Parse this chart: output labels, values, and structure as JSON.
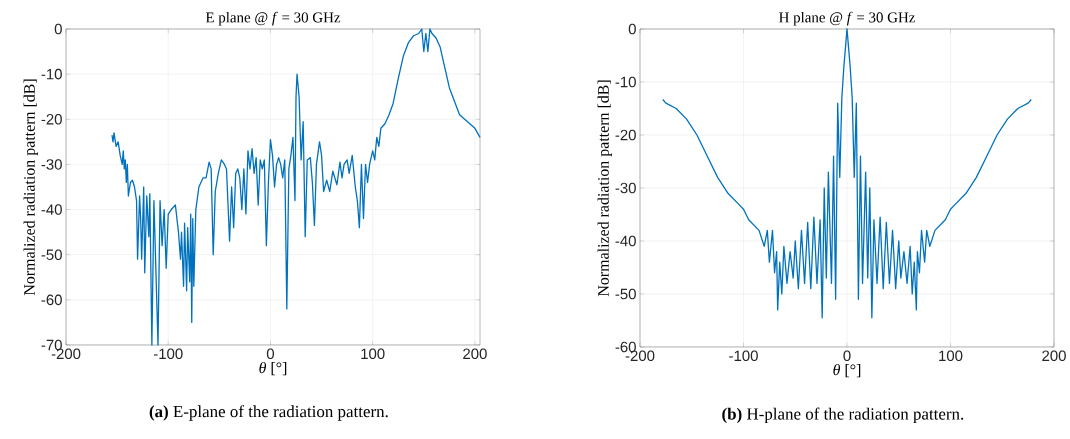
{
  "chart_data": [
    {
      "type": "line",
      "title": "E plane @ *f* = 30 GHz",
      "xlabel": "*θ* [°]",
      "ylabel": "Normalized radiation pattern [dB]",
      "annotations": [
        "**(a)** E-plane of the radiation pattern."
      ],
      "grid": true,
      "xlim": [
        -200,
        205
      ],
      "ylim": [
        -70,
        0
      ],
      "xticks": [
        -200,
        -100,
        0,
        100,
        200
      ],
      "yticks": [
        -70,
        -60,
        -50,
        -40,
        -30,
        -20,
        -10,
        0
      ],
      "series": [
        {
          "color": "#0072bd",
          "x": [
            -155,
            -154,
            -153,
            -151,
            -149,
            -147,
            -145,
            -144,
            -143,
            -142,
            -141,
            -140,
            -139,
            -137,
            -135,
            -133,
            -131,
            -130,
            -128,
            -127,
            -126,
            -124,
            -123,
            -121,
            -119,
            -118,
            -116,
            -114,
            -112,
            -110,
            -108,
            -106,
            -104,
            -102,
            -100,
            -97,
            -93,
            -90,
            -88,
            -87,
            -85,
            -84,
            -82,
            -81,
            -79,
            -78,
            -77,
            -76,
            -75,
            -73,
            -70,
            -66,
            -63,
            -60,
            -58,
            -56,
            -54,
            -51,
            -48,
            -45,
            -43,
            -40,
            -38,
            -36,
            -34,
            -32,
            -30,
            -28,
            -26,
            -24,
            -22,
            -20,
            -18,
            -16,
            -14,
            -12,
            -10,
            -8,
            -6,
            -4,
            -2,
            0,
            2,
            4,
            6,
            8,
            10,
            12,
            14,
            16,
            18,
            20,
            22,
            24,
            25,
            26,
            28,
            30,
            32,
            34,
            36,
            39,
            41,
            43,
            45,
            48,
            50,
            52,
            55,
            58,
            61,
            63,
            65,
            68,
            70,
            72,
            75,
            77,
            80,
            83,
            85,
            87,
            89,
            91,
            93,
            95,
            97,
            100,
            102,
            104,
            106,
            108,
            112,
            116,
            120,
            125,
            130,
            135,
            140,
            145,
            148,
            150,
            152,
            154,
            156,
            158,
            162,
            166,
            170,
            175,
            180,
            185,
            190,
            195,
            200,
            205
          ],
          "values": [
            -23.5,
            -25,
            -23,
            -26,
            -25,
            -28,
            -30,
            -27,
            -31,
            -29,
            -34,
            -30,
            -37,
            -34,
            -33.5,
            -35,
            -38,
            -51,
            -37,
            -42,
            -51,
            -35,
            -54,
            -37,
            -46,
            -36.5,
            -70,
            -38,
            -54,
            -70,
            -38,
            -48,
            -40,
            -53,
            -41,
            -40,
            -39,
            -45,
            -51,
            -45,
            -57,
            -43,
            -58,
            -44,
            -56,
            -41,
            -65,
            -42,
            -57,
            -40,
            -35,
            -33,
            -33,
            -29.5,
            -31,
            -50,
            -36,
            -32,
            -29,
            -30,
            -31,
            -47,
            -35,
            -44,
            -32,
            -31,
            -33,
            -40,
            -31,
            -41,
            -27,
            -31,
            -26.5,
            -32,
            -28.5,
            -39,
            -29,
            -31,
            -29,
            -48,
            -34,
            -24.5,
            -28,
            -35,
            -30,
            -28.5,
            -30,
            -33,
            -29,
            -62,
            -31,
            -28,
            -24,
            -38,
            -15,
            -10,
            -15,
            -29,
            -20.5,
            -46,
            -29,
            -28.5,
            -34,
            -43.5,
            -30,
            -25,
            -28,
            -36,
            -33.5,
            -36,
            -31.5,
            -33,
            -34.5,
            -29.5,
            -33,
            -30,
            -29,
            -32,
            -28,
            -35,
            -38,
            -44,
            -30,
            -42,
            -30,
            -34,
            -30,
            -27,
            -29,
            -24,
            -26,
            -22,
            -21,
            -19,
            -16.5,
            -11,
            -6,
            -3,
            -1.5,
            -1,
            0,
            -5,
            -1,
            -5,
            0,
            -1,
            -2,
            -4,
            -8,
            -13,
            -16,
            -19,
            -20,
            -21,
            -22,
            -24
          ]
        }
      ]
    },
    {
      "type": "line",
      "title": "H plane @ *f* = 30 GHz",
      "xlabel": "*θ* [°]",
      "ylabel": "Normalized radiation pattern [dB]",
      "annotations": [
        "**(b)** H-plane of the radiation pattern."
      ],
      "grid": true,
      "xlim": [
        -200,
        200
      ],
      "ylim": [
        -60,
        0
      ],
      "xticks": [
        -200,
        -100,
        0,
        100,
        200
      ],
      "yticks": [
        -60,
        -50,
        -40,
        -30,
        -20,
        -10,
        0
      ],
      "series": [
        {
          "color": "#0072bd",
          "x": [
            -178,
            -175,
            -165,
            -155,
            -145,
            -135,
            -125,
            -115,
            -105,
            -100,
            -95,
            -90,
            -85,
            -80,
            -77,
            -75,
            -72,
            -70,
            -68,
            -67,
            -65,
            -63,
            -61,
            -58,
            -55,
            -52,
            -50,
            -47,
            -44,
            -41,
            -38,
            -35,
            -32,
            -29,
            -26,
            -24,
            -22,
            -20,
            -18,
            -15,
            -13,
            -11,
            -9,
            -7,
            -5,
            -3,
            0,
            3,
            5,
            7,
            9,
            11,
            13,
            15,
            18,
            20,
            22,
            24,
            26,
            29,
            32,
            35,
            38,
            41,
            44,
            47,
            50,
            52,
            55,
            58,
            61,
            63,
            65,
            67,
            68,
            70,
            72,
            75,
            77,
            80,
            85,
            90,
            95,
            100,
            105,
            115,
            125,
            135,
            145,
            155,
            165,
            175,
            178
          ],
          "values": [
            -13.3,
            -14,
            -15,
            -17,
            -20,
            -24,
            -28,
            -31,
            -33,
            -34,
            -36,
            -37,
            -38,
            -41,
            -38,
            -44,
            -38,
            -46,
            -42,
            -53,
            -44,
            -50,
            -41,
            -48,
            -42,
            -47,
            -40,
            -49,
            -38,
            -48,
            -36.5,
            -49,
            -35.5,
            -48,
            -36,
            -54.5,
            -30,
            -47,
            -27,
            -48,
            -24,
            -51,
            -14,
            -28,
            -13,
            -7,
            0,
            -7,
            -13,
            -28,
            -14,
            -51,
            -24,
            -48,
            -27,
            -47,
            -30,
            -54.5,
            -36,
            -48,
            -35.5,
            -49,
            -36.5,
            -48,
            -38,
            -49,
            -40,
            -47,
            -42,
            -48,
            -41,
            -50,
            -44,
            -53,
            -42,
            -46,
            -38,
            -44,
            -38,
            -41,
            -38,
            -37,
            -36,
            -34,
            -33,
            -31,
            -28,
            -24,
            -20,
            -17,
            -15,
            -14,
            -13.3
          ]
        }
      ]
    }
  ]
}
